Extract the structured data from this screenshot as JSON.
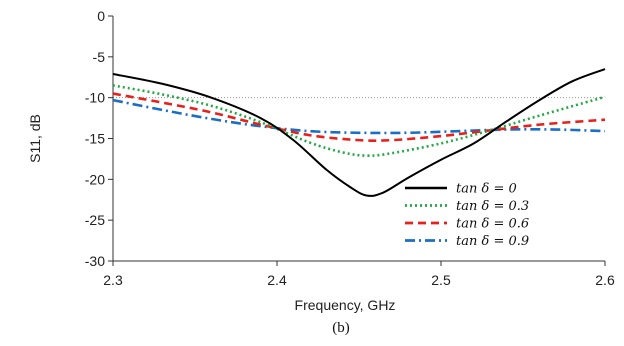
{
  "chart_data": {
    "type": "line",
    "xlabel": "Frequency, GHz",
    "ylabel": "S11, dB",
    "caption": "(b)",
    "xlim": [
      2.3,
      2.6
    ],
    "ylim": [
      -30,
      0
    ],
    "x_ticks": [
      "2.3",
      "2.4",
      "2.5",
      "2.6"
    ],
    "y_ticks": [
      "0",
      "-5",
      "-10",
      "-15",
      "-20",
      "-25",
      "-30"
    ],
    "reference_line": {
      "y": -10,
      "color": "#999999",
      "style": "dotted"
    },
    "legend_position": "right",
    "series": [
      {
        "name": "tan δ  = 0",
        "color": "#000000",
        "dash": "solid",
        "x": [
          2.3,
          2.33,
          2.36,
          2.39,
          2.41,
          2.43,
          2.445,
          2.455,
          2.465,
          2.48,
          2.5,
          2.52,
          2.54,
          2.56,
          2.58,
          2.6
        ],
        "y": [
          -7.1,
          -8.3,
          -10.0,
          -12.5,
          -15.2,
          -18.8,
          -21.0,
          -22.0,
          -21.6,
          -19.8,
          -17.6,
          -15.6,
          -12.9,
          -10.3,
          -8.0,
          -6.5
        ]
      },
      {
        "name": "tan δ  = 0.3",
        "color": "#22aa44",
        "dash": "dotted",
        "x": [
          2.3,
          2.33,
          2.36,
          2.39,
          2.42,
          2.44,
          2.455,
          2.47,
          2.5,
          2.53,
          2.56,
          2.6
        ],
        "y": [
          -8.5,
          -9.6,
          -11.0,
          -13.0,
          -15.5,
          -16.7,
          -17.1,
          -16.8,
          -15.6,
          -14.0,
          -12.2,
          -9.9
        ]
      },
      {
        "name": "tan δ  = 0.6",
        "color": "#e8201c",
        "dash": "dashed",
        "x": [
          2.3,
          2.33,
          2.36,
          2.39,
          2.42,
          2.45,
          2.47,
          2.5,
          2.53,
          2.56,
          2.6
        ],
        "y": [
          -9.5,
          -10.6,
          -11.8,
          -13.3,
          -14.6,
          -15.2,
          -15.2,
          -14.7,
          -14.0,
          -13.3,
          -12.7
        ]
      },
      {
        "name": "tan δ  = 0.9",
        "color": "#1a6fc4",
        "dash": "dashdot",
        "x": [
          2.3,
          2.33,
          2.36,
          2.39,
          2.42,
          2.45,
          2.48,
          2.51,
          2.54,
          2.57,
          2.6
        ],
        "y": [
          -10.3,
          -11.5,
          -12.6,
          -13.5,
          -14.1,
          -14.3,
          -14.3,
          -14.1,
          -13.9,
          -13.9,
          -14.1
        ]
      }
    ]
  }
}
